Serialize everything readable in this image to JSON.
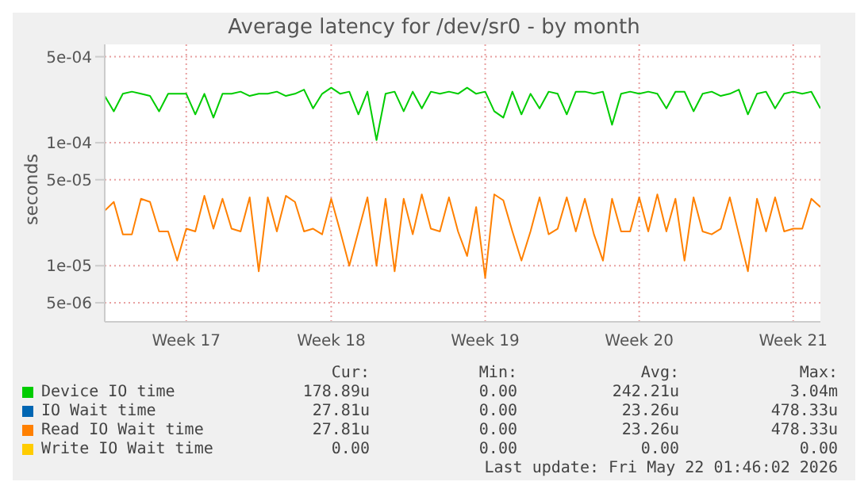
{
  "chart_data": {
    "type": "line",
    "title": "Average latency for /dev/sr0 - by month",
    "ylabel": "seconds",
    "log": "y",
    "grid": true,
    "legend": "bottom",
    "marker": "none",
    "line_style": "solid",
    "categories": [
      null,
      null,
      null,
      null,
      null,
      null,
      null,
      null,
      null,
      "Week 17",
      null,
      null,
      null,
      null,
      null,
      null,
      null,
      null,
      null,
      null,
      null,
      null,
      null,
      null,
      null,
      "Week 18",
      null,
      null,
      null,
      null,
      null,
      null,
      null,
      null,
      null,
      null,
      null,
      null,
      null,
      null,
      null,
      null,
      "Week 19",
      null,
      null,
      null,
      null,
      null,
      null,
      null,
      null,
      null,
      null,
      null,
      null,
      null,
      null,
      null,
      null,
      "Week 20",
      null,
      null,
      null,
      null,
      null,
      null,
      null,
      null,
      null,
      null,
      null,
      null,
      null,
      null,
      null,
      null,
      "Week 21",
      null,
      null,
      null
    ],
    "ylim": [
      3.5e-06,
      0.00063
    ],
    "yticks": [
      {
        "value": 5e-06,
        "label": "5e-06"
      },
      {
        "value": 1e-05,
        "label": "1e-05"
      },
      {
        "value": 5e-05,
        "label": "5e-05"
      },
      {
        "value": 0.0001,
        "label": "1e-04"
      },
      {
        "value": 0.0005,
        "label": "5e-04"
      }
    ],
    "series": [
      {
        "name": "Device IO time",
        "color": "#00cc00",
        "values": [
          0.00024,
          0.00018,
          0.00025,
          0.00026,
          0.00025,
          0.00024,
          0.00018,
          0.00025,
          0.00025,
          0.00025,
          0.00017,
          0.00025,
          0.00016,
          0.00025,
          0.00025,
          0.00026,
          0.00024,
          0.00025,
          0.00025,
          0.00026,
          0.00024,
          0.00025,
          0.00027,
          0.00019,
          0.00025,
          0.00028,
          0.00025,
          0.00026,
          0.00017,
          0.00026,
          0.000105,
          0.00025,
          0.00026,
          0.00018,
          0.00026,
          0.00019,
          0.00026,
          0.00025,
          0.00026,
          0.00025,
          0.00028,
          0.00025,
          0.00026,
          0.00018,
          0.00016,
          0.00026,
          0.00017,
          0.00025,
          0.00019,
          0.00026,
          0.00025,
          0.00017,
          0.00026,
          0.00026,
          0.00025,
          0.00026,
          0.00014,
          0.00025,
          0.00026,
          0.00025,
          0.00026,
          0.00025,
          0.00019,
          0.00026,
          0.00026,
          0.00018,
          0.00025,
          0.00026,
          0.00024,
          0.00025,
          0.00027,
          0.00017,
          0.00025,
          0.00026,
          0.00019,
          0.00025,
          0.00026,
          0.00025,
          0.00026,
          0.00019
        ]
      },
      {
        "name": "IO Wait time",
        "color": "#0066b3",
        "values": [
          null,
          null,
          null,
          null,
          null,
          null,
          null,
          null,
          null,
          null,
          null,
          null,
          null,
          null,
          null,
          null,
          null,
          null,
          null,
          null,
          null,
          null,
          null,
          null,
          null,
          null,
          null,
          null,
          null,
          null,
          null,
          null,
          null,
          null,
          null,
          null,
          null,
          null,
          null,
          null,
          null,
          null,
          null,
          null,
          null,
          null,
          null,
          null,
          null,
          null,
          null,
          null,
          null,
          null,
          null,
          null,
          null,
          null,
          null,
          null,
          null,
          null,
          null,
          null,
          null,
          null,
          null,
          null,
          null,
          null,
          null,
          null,
          null,
          null,
          null,
          null,
          null,
          null,
          null,
          null
        ]
      },
      {
        "name": "Read IO Wait time",
        "color": "#ff8000",
        "values": [
          2.8e-05,
          3.3e-05,
          1.8e-05,
          1.8e-05,
          3.5e-05,
          3.3e-05,
          1.9e-05,
          1.9e-05,
          1.1e-05,
          2e-05,
          1.9e-05,
          3.7e-05,
          2e-05,
          3.5e-05,
          2e-05,
          1.9e-05,
          3.6e-05,
          9e-06,
          3.6e-05,
          1.9e-05,
          3.7e-05,
          3.3e-05,
          1.9e-05,
          2e-05,
          1.8e-05,
          3.5e-05,
          1.9e-05,
          1e-05,
          1.9e-05,
          3.6e-05,
          1e-05,
          3.5e-05,
          9e-06,
          3.5e-05,
          1.8e-05,
          3.8e-05,
          2e-05,
          1.9e-05,
          3.6e-05,
          1.9e-05,
          1.2e-05,
          3e-05,
          8e-06,
          3.8e-05,
          3.4e-05,
          1.9e-05,
          1.1e-05,
          1.9e-05,
          3.6e-05,
          1.8e-05,
          2e-05,
          3.6e-05,
          1.9e-05,
          3.5e-05,
          1.8e-05,
          1.1e-05,
          3.5e-05,
          1.9e-05,
          1.9e-05,
          3.6e-05,
          1.9e-05,
          3.8e-05,
          1.9e-05,
          3.5e-05,
          1.1e-05,
          3.6e-05,
          1.9e-05,
          1.8e-05,
          2e-05,
          3.6e-05,
          1.8e-05,
          9e-06,
          3.5e-05,
          1.9e-05,
          3.6e-05,
          1.9e-05,
          2e-05,
          2e-05,
          3.5e-05,
          3e-05
        ]
      },
      {
        "name": "Write IO Wait time",
        "color": "#ffcc00",
        "values": [
          null,
          null,
          null,
          null,
          null,
          null,
          null,
          null,
          null,
          null,
          null,
          null,
          null,
          null,
          null,
          null,
          null,
          null,
          null,
          null,
          null,
          null,
          null,
          null,
          null,
          null,
          null,
          null,
          null,
          null,
          null,
          null,
          null,
          null,
          null,
          null,
          null,
          null,
          null,
          null,
          null,
          null,
          null,
          null,
          null,
          null,
          null,
          null,
          null,
          null,
          null,
          null,
          null,
          null,
          null,
          null,
          null,
          null,
          null,
          null,
          null,
          null,
          null,
          null,
          null,
          null,
          null,
          null,
          null,
          null,
          null,
          null,
          null,
          null,
          null,
          null,
          null,
          null,
          null,
          null
        ]
      }
    ],
    "annotations": [
      "Cur:",
      "Min:",
      "Avg:",
      "Max:",
      "178.89u",
      "0.00",
      "242.21u",
      "3.04m",
      "27.81u",
      "0.00",
      "23.26u",
      "478.33u",
      "27.81u",
      "0.00",
      "23.26u",
      "478.33u",
      "0.00",
      "0.00",
      "0.00",
      "0.00",
      "Last update: Fri May 22 01:46:02 2026"
    ]
  }
}
